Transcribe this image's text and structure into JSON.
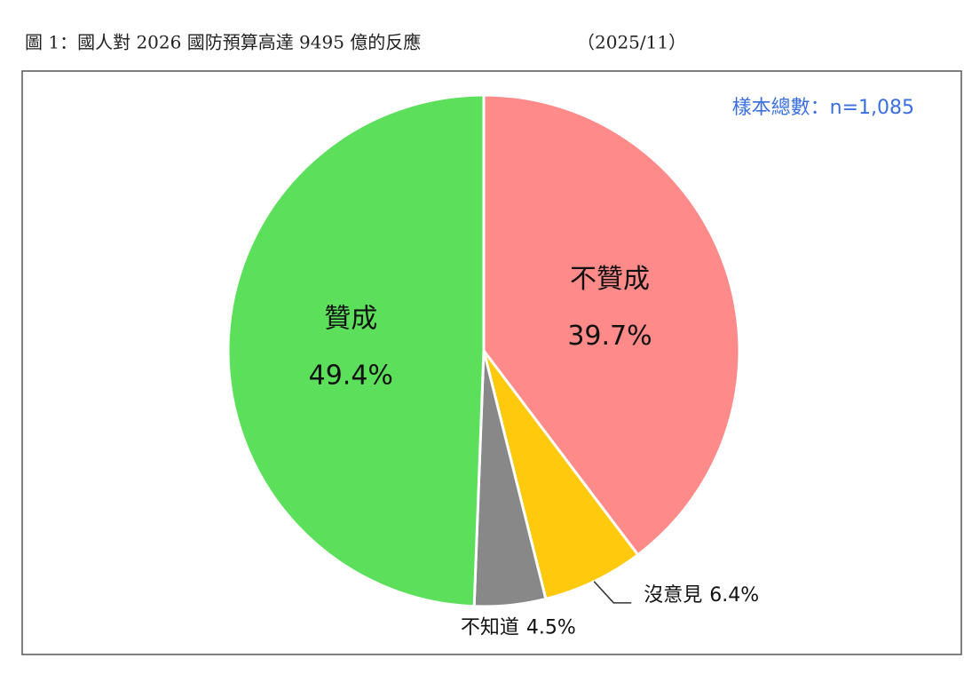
{
  "chart_data": {
    "type": "pie",
    "title": "圖 1：國人對 2026 國防預算高達 9495 億的反應",
    "subtitle": "（2025/11）",
    "annotation": "樣本總數：n=1,085",
    "categories": [
      "不贊成",
      "沒意見",
      "不知道",
      "贊成"
    ],
    "values": [
      39.7,
      6.4,
      4.5,
      49.4
    ],
    "value_labels": [
      "39.7%",
      "6.4%",
      "4.5%",
      "49.4%"
    ],
    "colors": [
      "#ff8a8a",
      "#ffc90e",
      "#888888",
      "#5ce05c"
    ]
  }
}
